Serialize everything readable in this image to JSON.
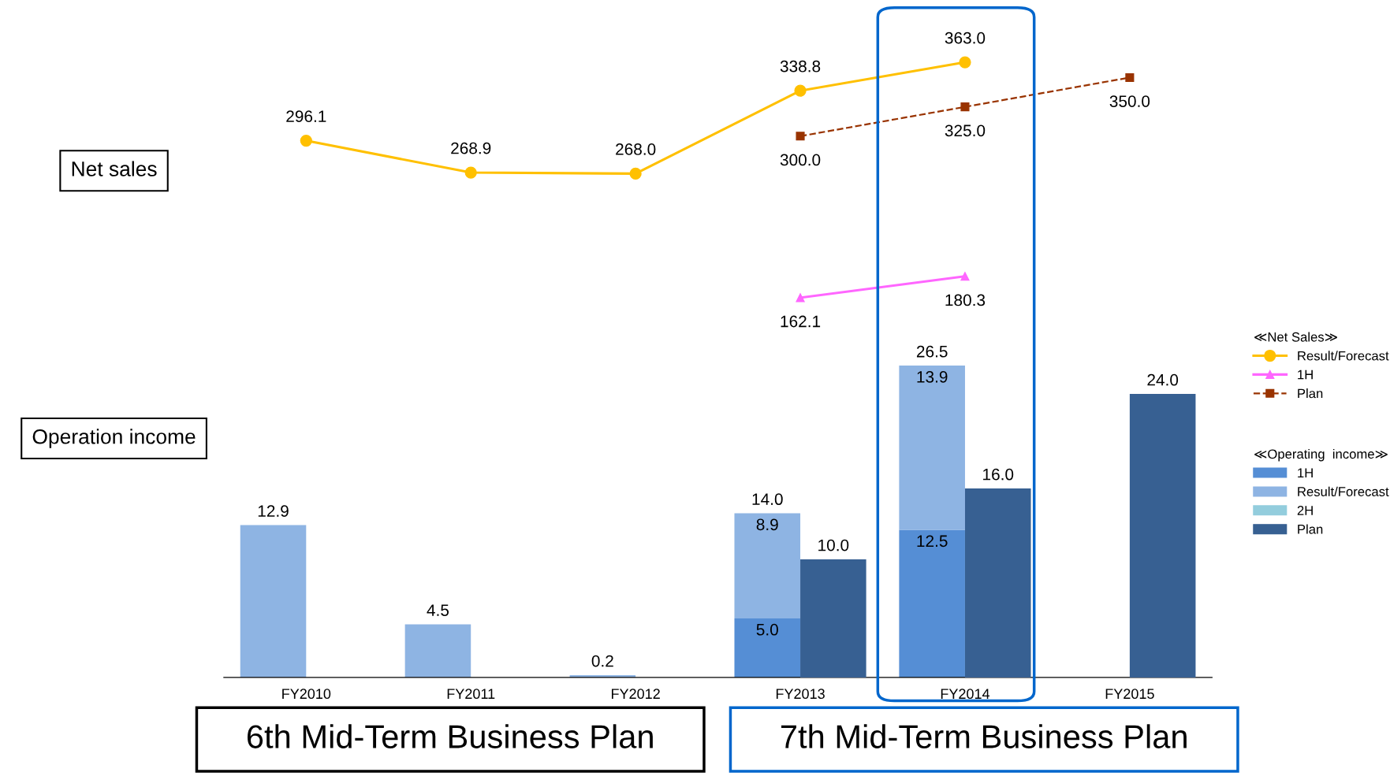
{
  "chart_data": [
    {
      "type": "line",
      "categories": [
        null,
        null,
        null,
        null,
        null,
        null
      ],
      "tick_labels": false,
      "legend": "right",
      "legend_title": "≪Net Sales≫",
      "annotations": [
        "Net sales"
      ],
      "series": [
        {
          "name": "Result/Forecast",
          "color": "#ffc000",
          "marker": "circle",
          "line_style": "solid",
          "values": [
            296.1,
            268.9,
            268.0,
            338.8,
            363.0,
            null
          ],
          "value_labels": [
            "296.1",
            "268.9",
            "268.0",
            "338.8",
            "363.0",
            null
          ]
        },
        {
          "name": "1H",
          "color": "#ff66ff",
          "marker": "triangle",
          "line_style": "solid",
          "values": [
            null,
            null,
            null,
            162.1,
            180.3,
            null
          ],
          "value_labels": [
            null,
            null,
            null,
            "162.1",
            "180.3",
            null
          ]
        },
        {
          "name": "Plan",
          "color": "#993300",
          "marker": "square",
          "line_style": "dashed",
          "values": [
            null,
            null,
            null,
            300.0,
            325.0,
            350.0
          ],
          "value_labels": [
            null,
            null,
            null,
            "300.0",
            "325.0",
            "350.0"
          ]
        }
      ]
    },
    {
      "type": "bar",
      "stacked": true,
      "categories": [
        "FY2010",
        "FY2011",
        "FY2012",
        "FY2013",
        "FY2014",
        "FY2015"
      ],
      "legend": "right",
      "legend_title": "≪Operating  income≫",
      "annotations": [
        "Operation income",
        "6th Mid-Term Business Plan",
        "7th Mid-Term Business Plan"
      ],
      "series": [
        {
          "name": "1H",
          "color": "#558ed5",
          "values": [
            null,
            null,
            null,
            5.0,
            12.5,
            null
          ],
          "value_labels": [
            null,
            null,
            null,
            "5.0",
            "12.5",
            null
          ]
        },
        {
          "name": "Result/Forecast",
          "color": "#8eb4e3",
          "values": [
            12.9,
            4.5,
            0.2,
            8.9,
            13.9,
            null
          ],
          "value_labels": [
            null,
            null,
            null,
            "8.9",
            "13.9",
            null
          ]
        },
        {
          "name": "2H",
          "color": "#93cddd",
          "values": [
            null,
            null,
            null,
            null,
            null,
            null
          ]
        },
        {
          "name": "Plan",
          "color": "#376092",
          "axis": "y2",
          "values": [
            null,
            null,
            null,
            10.0,
            16.0,
            24.0
          ],
          "value_labels": [
            null,
            null,
            null,
            "10.0",
            "16.0",
            "24.0"
          ]
        }
      ],
      "totals": [
        "12.9",
        "4.5",
        "0.2",
        "14.0",
        "26.5",
        null
      ]
    }
  ]
}
